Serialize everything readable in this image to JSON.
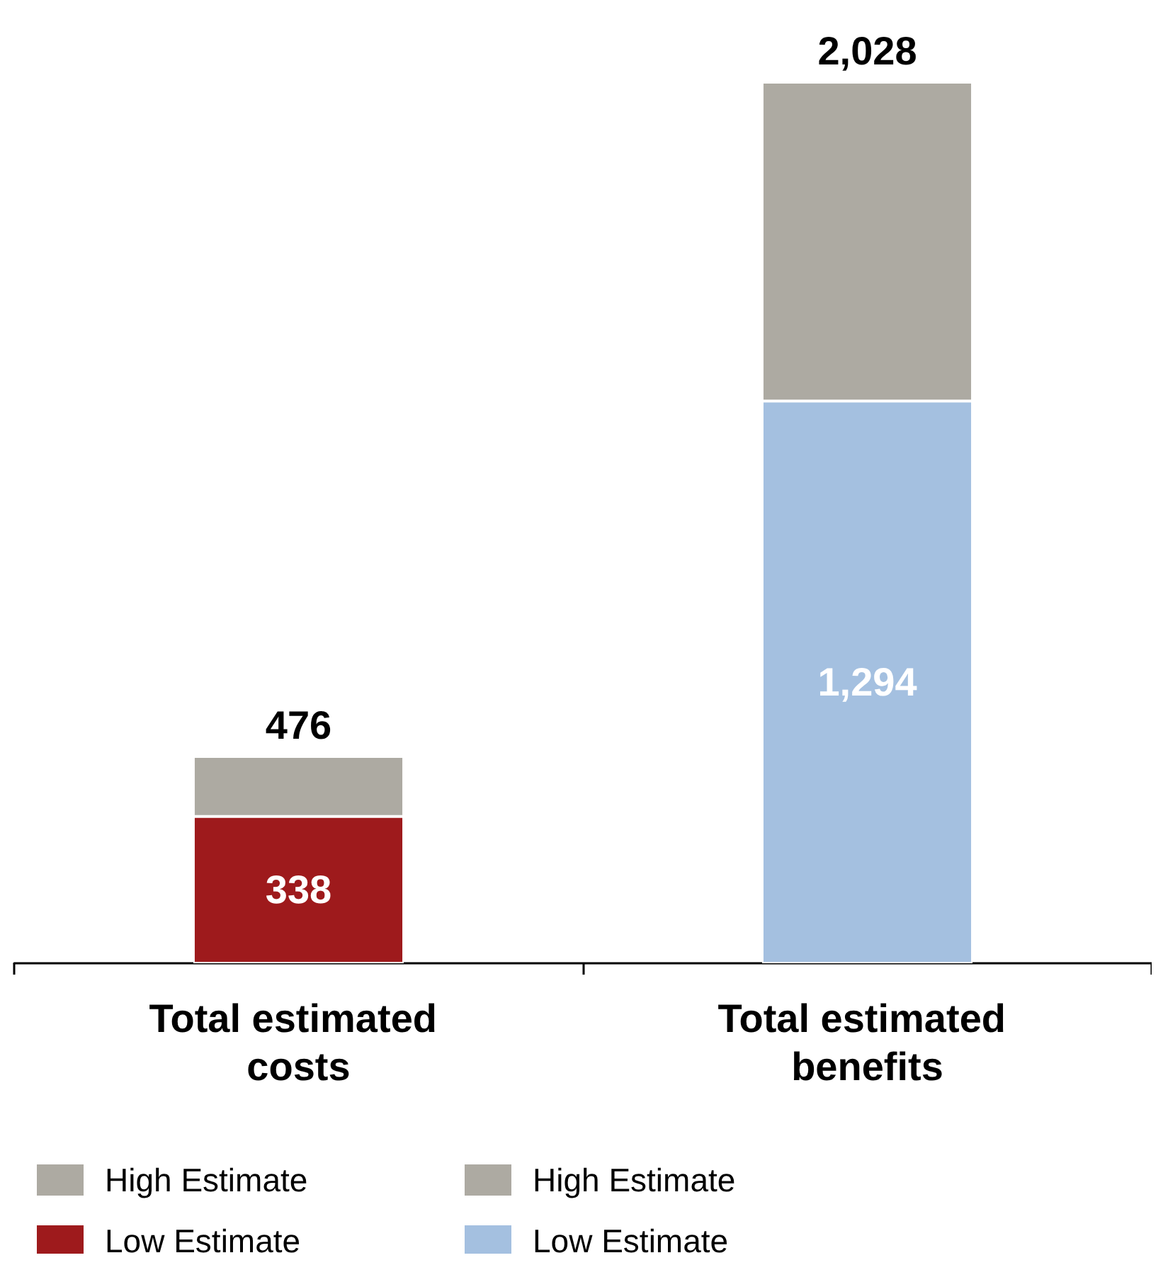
{
  "chart_data": {
    "type": "bar",
    "stacked": true,
    "legend": "bottom",
    "categories": [
      "Total estimated costs",
      "Total estimated benefits"
    ],
    "series": [
      {
        "name": "Low Estimate",
        "color": "#9e1a1c",
        "values": [
          338,
          null
        ],
        "value_labels": [
          "338",
          null
        ]
      },
      {
        "name": "Low Estimate",
        "color": "#a4c0e0",
        "values": [
          null,
          1294
        ],
        "value_labels": [
          null,
          "1,294"
        ]
      },
      {
        "name": "High Estimate",
        "color": "#adaaa2",
        "values": [
          138,
          null
        ]
      },
      {
        "name": "High Estimate",
        "color": "#adaaa2",
        "values": [
          null,
          734
        ]
      }
    ],
    "totals": [
      "476",
      "2,028"
    ]
  }
}
